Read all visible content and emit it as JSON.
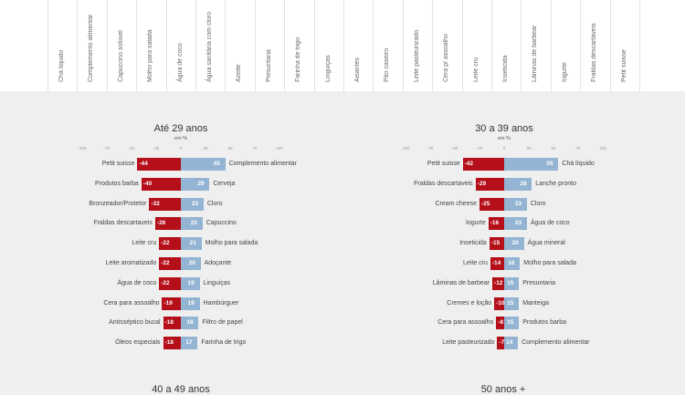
{
  "top_labels": [
    "Chá líquido",
    "Complemento alimentar",
    "Capuccino solúvel",
    "Molho para salada",
    "Água de coco",
    "Água sanitária com cloro",
    "Azeite",
    "Presuntaria",
    "Farinha de trigo",
    "Linguiças",
    "Aisantes",
    "Pão caseiro",
    "Leite pasteurizado",
    "Cera p/ assoalho",
    "Leite cru",
    "Inseticida",
    "Lâminas de barbear",
    "Iogurte",
    "Fraldas descartáveis",
    "Petit suisse"
  ],
  "chart_data": [
    {
      "type": "bar",
      "title": "Até 29 anos",
      "subtitle": "em %",
      "ticks": [
        "-100",
        "-75",
        "-50",
        "-25",
        "0",
        "25",
        "50",
        "75",
        "100"
      ],
      "xlim": [
        -100,
        100
      ],
      "rows": [
        {
          "neg_label": "Petit suisse",
          "neg": -44,
          "pos_label": "Complemento alimentar",
          "pos": 45
        },
        {
          "neg_label": "Produtos barba",
          "neg": -40,
          "pos_label": "Cerveja",
          "pos": 29
        },
        {
          "neg_label": "Bronzeador/Protetor",
          "neg": -32,
          "pos_label": "Cloro",
          "pos": 23
        },
        {
          "neg_label": "Fraldas descartaveis",
          "neg": -26,
          "pos_label": "Capuccino",
          "pos": 22
        },
        {
          "neg_label": "Leite cru",
          "neg": -22,
          "pos_label": "Molho para salada",
          "pos": 21
        },
        {
          "neg_label": "Leite aromatizado",
          "neg": -22,
          "pos_label": "Adoçante",
          "pos": 20
        },
        {
          "neg_label": "Água de coco",
          "neg": -22,
          "pos_label": "Linguiças",
          "pos": 19
        },
        {
          "neg_label": "Cera para assoalho",
          "neg": -19,
          "pos_label": "Hambúrguer",
          "pos": 19
        },
        {
          "neg_label": "Antisséptico bucal",
          "neg": -18,
          "pos_label": "Filtro de papel",
          "pos": 18
        },
        {
          "neg_label": "Óleos especiais",
          "neg": -18,
          "pos_label": "Farinha de trigo",
          "pos": 17
        }
      ]
    },
    {
      "type": "bar",
      "title": "30 a 39 anos",
      "subtitle": "em %",
      "ticks": [
        "-100",
        "-75",
        "-50",
        "-25",
        "0",
        "25",
        "50",
        "75",
        "100"
      ],
      "xlim": [
        -100,
        100
      ],
      "rows": [
        {
          "neg_label": "Petit suisse",
          "neg": -42,
          "pos_label": "Chá líquido",
          "pos": 55
        },
        {
          "neg_label": "Fraldas descartaveis",
          "neg": -29,
          "pos_label": "Lanche pronto",
          "pos": 28
        },
        {
          "neg_label": "Cream cheese",
          "neg": -25,
          "pos_label": "Cloro",
          "pos": 23
        },
        {
          "neg_label": "Iogurte",
          "neg": -16,
          "pos_label": "Água de coco",
          "pos": 23
        },
        {
          "neg_label": "Inseticida",
          "neg": -15,
          "pos_label": "Água mineral",
          "pos": 20
        },
        {
          "neg_label": "Leite cru",
          "neg": -14,
          "pos_label": "Molho para salada",
          "pos": 16
        },
        {
          "neg_label": "Lâminas de barbear",
          "neg": -12,
          "pos_label": "Presuntaria",
          "pos": 15
        },
        {
          "neg_label": "Cremes e loção",
          "neg": -10,
          "pos_label": "Manteiga",
          "pos": 15
        },
        {
          "neg_label": "Cera para assoalho",
          "neg": -8,
          "pos_label": "Produtos barba",
          "pos": 15
        },
        {
          "neg_label": "Leite pasteurizado",
          "neg": -7,
          "pos_label": "Complemento alimentar",
          "pos": 14
        }
      ]
    }
  ],
  "next_titles": [
    "40 a 49 anos",
    "50 anos +"
  ],
  "colors": {
    "negative": "#b50f1a",
    "positive": "#93b4d3"
  }
}
